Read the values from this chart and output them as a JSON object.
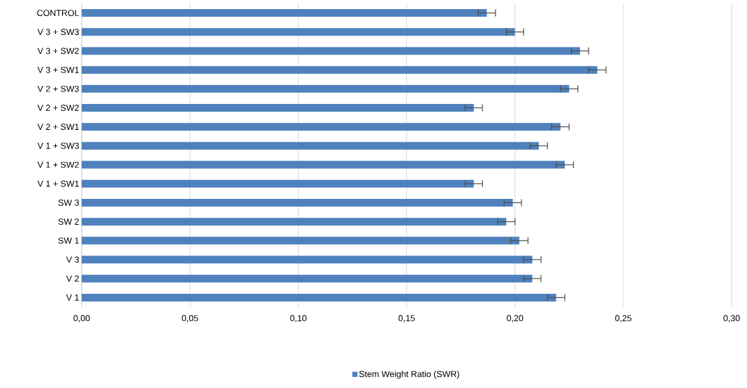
{
  "chart_data": {
    "type": "bar",
    "orientation": "horizontal",
    "categories": [
      "CONTROL",
      "V 3 + SW3",
      "V 3 + SW2",
      "V 3 + SW1",
      "V 2 + SW3",
      "V 2 + SW2",
      "V 2 + SW1",
      "V 1 + SW3",
      "V 1 + SW2",
      "V 1 + SW1",
      "SW 3",
      "SW 2",
      "SW 1",
      "V 3",
      "V 2",
      "V 1"
    ],
    "series": [
      {
        "name": "Stem Weight Ratio (SWR)",
        "color": "#4f81bd",
        "values": [
          0.187,
          0.2,
          0.23,
          0.238,
          0.225,
          0.181,
          0.221,
          0.211,
          0.223,
          0.181,
          0.199,
          0.196,
          0.202,
          0.208,
          0.208,
          0.219
        ],
        "errors": [
          0.004,
          0.004,
          0.004,
          0.004,
          0.004,
          0.004,
          0.004,
          0.004,
          0.004,
          0.004,
          0.004,
          0.004,
          0.004,
          0.004,
          0.004,
          0.004
        ]
      }
    ],
    "xlim": [
      0,
      0.3
    ],
    "xticks": [
      {
        "value": 0,
        "label": "0,00"
      },
      {
        "value": 0.05,
        "label": "0,05"
      },
      {
        "value": 0.1,
        "label": "0,10"
      },
      {
        "value": 0.15,
        "label": "0,15"
      },
      {
        "value": 0.2,
        "label": "0,20"
      },
      {
        "value": 0.25,
        "label": "0,25"
      },
      {
        "value": 0.3,
        "label": "0,30"
      }
    ],
    "grid": "x",
    "legend": "bottom"
  }
}
